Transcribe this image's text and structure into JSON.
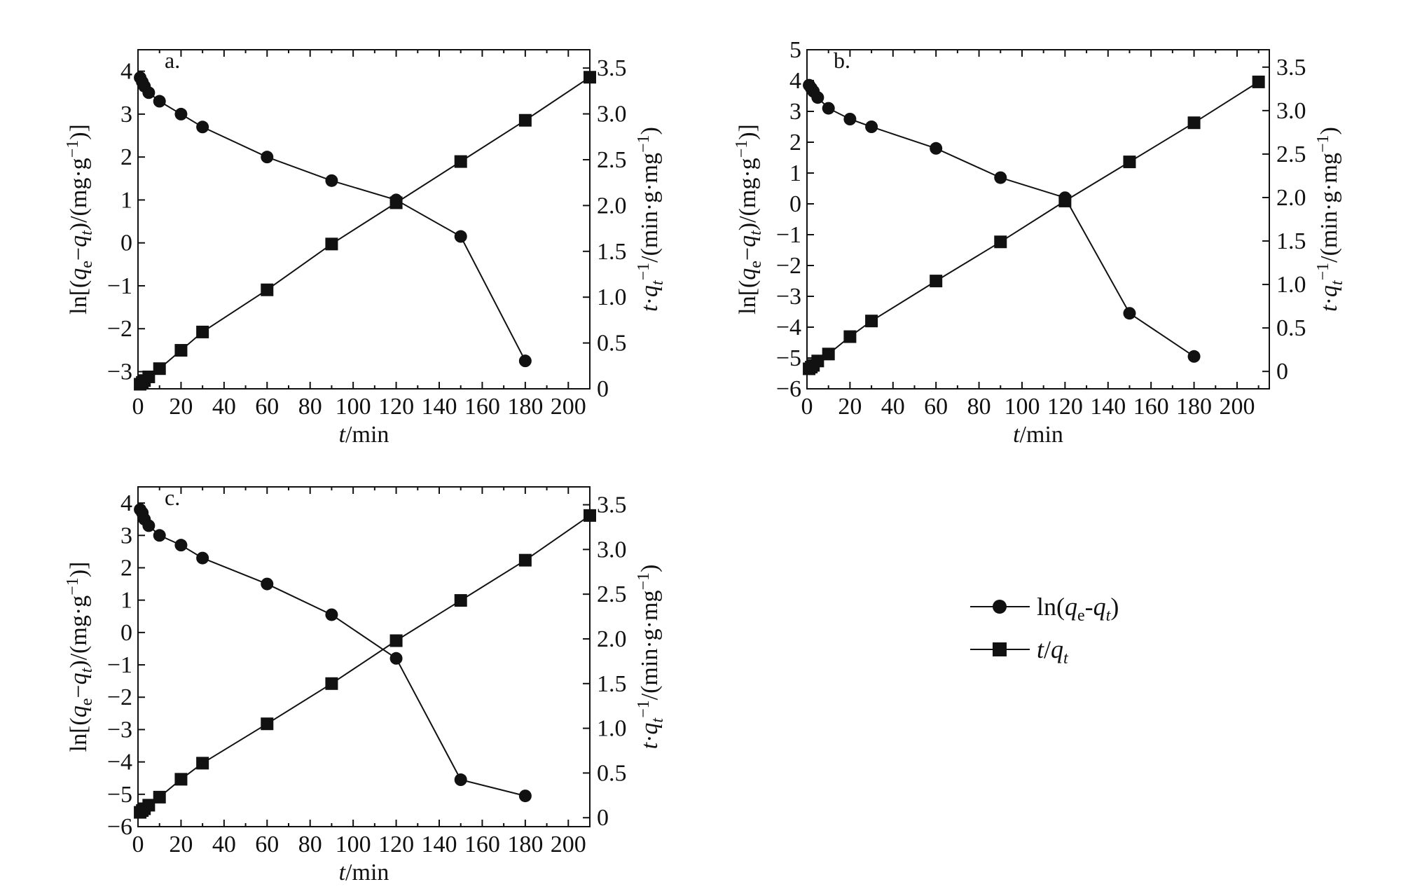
{
  "colors": {
    "ink": "#111111",
    "background": "#ffffff"
  },
  "legend": {
    "placement": "right of panel c",
    "entries": [
      {
        "marker": "circle",
        "label": "ln(qe-qt)"
      },
      {
        "marker": "square",
        "label": "t/qt"
      }
    ]
  },
  "chart_data": [
    {
      "type": "line",
      "panel": "a.",
      "xlabel": "t/min",
      "ylabel_left": "ln[(qe−qt)/(mg·g−1)]",
      "ylabel_right": "t·qt−1/(min·g·mg−1)",
      "xlim": [
        0,
        210
      ],
      "ylim_left": [
        -3.4,
        4.5
      ],
      "ylim_right": [
        0,
        3.7
      ],
      "x_ticks": [
        0,
        20,
        40,
        60,
        80,
        100,
        120,
        140,
        160,
        180,
        200
      ],
      "y_left_ticks": [
        -3,
        -2,
        -1,
        0,
        1,
        2,
        3,
        4
      ],
      "y_right_ticks": [
        "0",
        "0.5",
        "1.0",
        "1.5",
        "2.0",
        "2.5",
        "3.0",
        "3.5"
      ],
      "series": [
        {
          "name": "ln(qe-qt)",
          "marker": "circle",
          "axis": "left",
          "x": [
            1,
            2,
            3,
            5,
            10,
            20,
            30,
            60,
            90,
            120,
            150,
            180
          ],
          "y": [
            3.85,
            3.75,
            3.65,
            3.5,
            3.3,
            3.0,
            2.7,
            2.0,
            1.45,
            1.0,
            0.15,
            -2.75
          ]
        },
        {
          "name": "t/qt",
          "marker": "square",
          "axis": "right",
          "x": [
            1,
            2,
            3,
            5,
            10,
            20,
            30,
            60,
            90,
            120,
            150,
            180,
            210
          ],
          "y": [
            0.05,
            0.07,
            0.09,
            0.13,
            0.22,
            0.42,
            0.62,
            1.08,
            1.58,
            2.03,
            2.48,
            2.93,
            3.4
          ]
        }
      ]
    },
    {
      "type": "line",
      "panel": "b.",
      "xlabel": "t/min",
      "ylabel_left": "ln[(qe−qt)/(mg·g−1)]",
      "ylabel_right": "t·qt−1/(min·g·mg−1)",
      "xlim": [
        0,
        215
      ],
      "ylim_left": [
        -6,
        5
      ],
      "ylim_right": [
        -0.2,
        3.7
      ],
      "x_ticks": [
        0,
        20,
        40,
        60,
        80,
        100,
        120,
        140,
        160,
        180,
        200
      ],
      "y_left_ticks": [
        -6,
        -5,
        -4,
        -3,
        -2,
        -1,
        0,
        1,
        2,
        3,
        4,
        5
      ],
      "y_right_ticks": [
        "0",
        "0.5",
        "1.0",
        "1.5",
        "2.0",
        "2.5",
        "3.0",
        "3.5"
      ],
      "series": [
        {
          "name": "ln(qe-qt)",
          "marker": "circle",
          "axis": "left",
          "x": [
            1,
            2,
            3,
            5,
            10,
            20,
            30,
            60,
            90,
            120,
            150,
            180
          ],
          "y": [
            3.85,
            3.75,
            3.65,
            3.45,
            3.1,
            2.75,
            2.5,
            1.8,
            0.85,
            0.2,
            -3.55,
            -4.95
          ]
        },
        {
          "name": "t/qt",
          "marker": "square",
          "axis": "right",
          "x": [
            1,
            2,
            3,
            5,
            10,
            20,
            30,
            60,
            90,
            120,
            150,
            180,
            210
          ],
          "y": [
            0.03,
            0.05,
            0.07,
            0.12,
            0.2,
            0.4,
            0.58,
            1.04,
            1.49,
            1.96,
            2.41,
            2.86,
            3.33
          ]
        }
      ]
    },
    {
      "type": "line",
      "panel": "c.",
      "xlabel": "t/min",
      "ylabel_left": "ln[(qe−qt)/(mg·g−1)]",
      "ylabel_right": "t·qt−1/(min·g·mg−1)",
      "xlim": [
        0,
        210
      ],
      "ylim_left": [
        -6,
        4.5
      ],
      "ylim_right": [
        -0.1,
        3.7
      ],
      "x_ticks": [
        0,
        20,
        40,
        60,
        80,
        100,
        120,
        140,
        160,
        180,
        200
      ],
      "y_left_ticks": [
        -6,
        -5,
        -4,
        -3,
        -2,
        -1,
        0,
        1,
        2,
        3,
        4
      ],
      "y_right_ticks": [
        "0",
        "0.5",
        "1.0",
        "1.5",
        "2.0",
        "2.5",
        "3.0",
        "3.5"
      ],
      "series": [
        {
          "name": "ln(qe-qt)",
          "marker": "circle",
          "axis": "left",
          "x": [
            1,
            2,
            3,
            5,
            10,
            20,
            30,
            60,
            90,
            120,
            150,
            180
          ],
          "y": [
            3.8,
            3.7,
            3.5,
            3.3,
            3.0,
            2.7,
            2.3,
            1.5,
            0.55,
            -0.8,
            -4.55,
            -5.05
          ]
        },
        {
          "name": "t/qt",
          "marker": "square",
          "axis": "right",
          "x": [
            1,
            2,
            3,
            5,
            10,
            20,
            30,
            60,
            90,
            120,
            150,
            180,
            210
          ],
          "y": [
            0.06,
            0.08,
            0.1,
            0.14,
            0.23,
            0.43,
            0.61,
            1.05,
            1.5,
            1.98,
            2.43,
            2.88,
            3.38
          ]
        }
      ]
    }
  ]
}
